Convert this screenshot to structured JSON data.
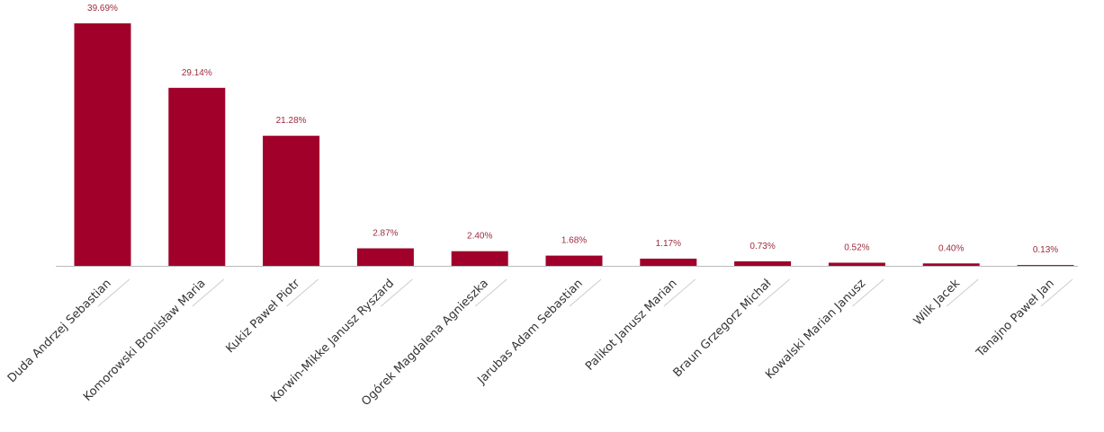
{
  "chart_data": {
    "type": "bar",
    "categories": [
      "Duda Andrzej Sebastian",
      "Komorowski Bronisław Maria",
      "Kukiz Paweł Piotr",
      "Korwin-Mikke Janusz Ryszard",
      "Ogórek Magdalena Agnieszka",
      "Jarubas Adam Sebastian",
      "Palikot Janusz Marian",
      "Braun Grzegorz Michał",
      "Kowalski Marian Janusz",
      "Wilk Jacek",
      "Tanajno Paweł Jan"
    ],
    "values": [
      39.69,
      29.14,
      21.28,
      2.87,
      2.4,
      1.68,
      1.17,
      0.73,
      0.52,
      0.4,
      0.13
    ],
    "value_labels": [
      "39.69%",
      "29.14%",
      "21.28%",
      "2.87%",
      "2.40%",
      "1.68%",
      "1.17%",
      "0.73%",
      "0.52%",
      "0.40%",
      "0.13%"
    ],
    "ylim": [
      0,
      39.69
    ],
    "grid": false,
    "colors": {
      "bar": "#a0002a",
      "value_label": "#9c2a3b",
      "axis": "#bbbbbb",
      "leader": "#cccccc",
      "category_label": "#333333"
    }
  }
}
